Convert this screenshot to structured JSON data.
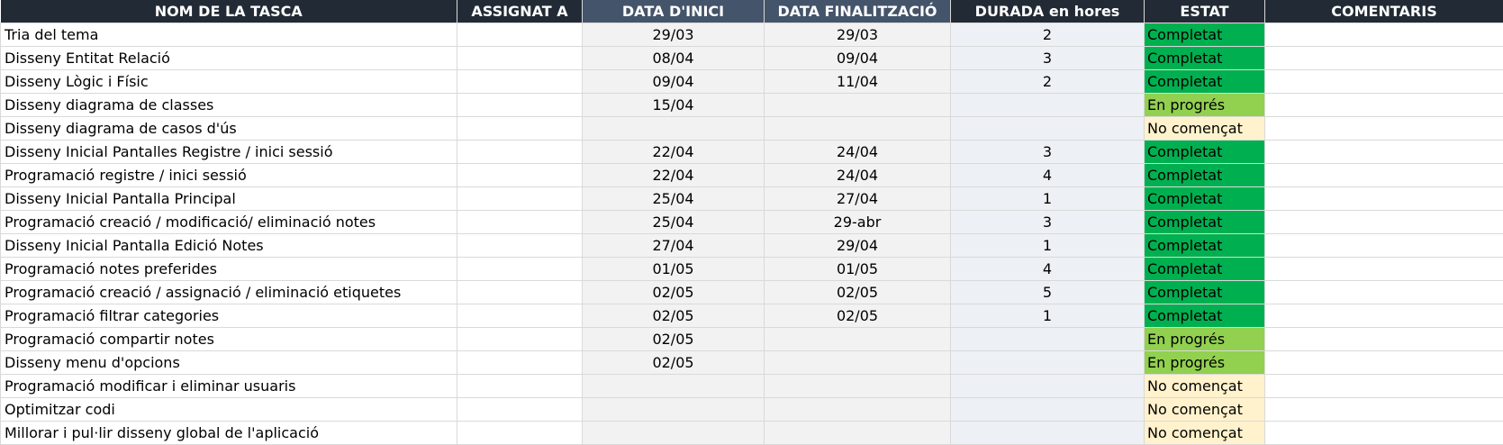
{
  "headers": {
    "task": "NOM DE LA TASCA",
    "assigned": "ASSIGNAT A",
    "start": "DATA D'INICI",
    "end": "DATA FINALITZACIÓ",
    "duration": "DURADA en hores",
    "status": "ESTAT",
    "comments": "COMENTARIS"
  },
  "colors": {
    "header_bg": "#222b35",
    "header_accent_bg": "#44546a",
    "status_completat": "#00b050",
    "status_en_progres": "#92d050",
    "status_no_comencat": "#fff2cc"
  },
  "rows": [
    {
      "task": "Tria del tema",
      "assigned": "",
      "start": "29/03",
      "end": "29/03",
      "duration": "2",
      "status": "Completat",
      "comments": ""
    },
    {
      "task": "Disseny Entitat Relació",
      "assigned": "",
      "start": "08/04",
      "end": "09/04",
      "duration": "3",
      "status": "Completat",
      "comments": ""
    },
    {
      "task": "Disseny Lògic i Físic",
      "assigned": "",
      "start": "09/04",
      "end": "11/04",
      "duration": "2",
      "status": "Completat",
      "comments": ""
    },
    {
      "task": "Disseny diagrama de classes",
      "assigned": "",
      "start": "15/04",
      "end": "",
      "duration": "",
      "status": "En progrés",
      "comments": ""
    },
    {
      "task": "Disseny diagrama de casos d'ús",
      "assigned": "",
      "start": "",
      "end": "",
      "duration": "",
      "status": "No començat",
      "comments": ""
    },
    {
      "task": "Disseny Inicial Pantalles Registre / inici sessió",
      "assigned": "",
      "start": "22/04",
      "end": "24/04",
      "duration": "3",
      "status": "Completat",
      "comments": ""
    },
    {
      "task": "Programació registre / inici sessió",
      "assigned": "",
      "start": "22/04",
      "end": "24/04",
      "duration": "4",
      "status": "Completat",
      "comments": ""
    },
    {
      "task": "Disseny Inicial Pantalla Principal",
      "assigned": "",
      "start": "25/04",
      "end": "27/04",
      "duration": "1",
      "status": "Completat",
      "comments": ""
    },
    {
      "task": "Programació creació / modificació/ eliminació notes",
      "assigned": "",
      "start": "25/04",
      "end": "29-abr",
      "duration": "3",
      "status": "Completat",
      "comments": ""
    },
    {
      "task": "Disseny Inicial Pantalla Edició Notes",
      "assigned": "",
      "start": "27/04",
      "end": "29/04",
      "duration": "1",
      "status": "Completat",
      "comments": ""
    },
    {
      "task": "Programació notes preferides",
      "assigned": "",
      "start": "01/05",
      "end": "01/05",
      "duration": "4",
      "status": "Completat",
      "comments": ""
    },
    {
      "task": "Programació creació / assignació / eliminació etiquetes",
      "assigned": "",
      "start": "02/05",
      "end": "02/05",
      "duration": "5",
      "status": "Completat",
      "comments": ""
    },
    {
      "task": "Programació filtrar categories",
      "assigned": "",
      "start": "02/05",
      "end": "02/05",
      "duration": "1",
      "status": "Completat",
      "comments": ""
    },
    {
      "task": "Programació compartir notes",
      "assigned": "",
      "start": "02/05",
      "end": "",
      "duration": "",
      "status": "En progrés",
      "comments": ""
    },
    {
      "task": "Disseny menu d'opcions",
      "assigned": "",
      "start": "02/05",
      "end": "",
      "duration": "",
      "status": "En progrés",
      "comments": ""
    },
    {
      "task": "Programació modificar i eliminar usuaris",
      "assigned": "",
      "start": "",
      "end": "",
      "duration": "",
      "status": "No començat",
      "comments": ""
    },
    {
      "task": "Optimitzar codi",
      "assigned": "",
      "start": "",
      "end": "",
      "duration": "",
      "status": "No començat",
      "comments": ""
    },
    {
      "task": "Millorar i pul·lir disseny global de l'aplicació",
      "assigned": "",
      "start": "",
      "end": "",
      "duration": "",
      "status": "No començat",
      "comments": ""
    }
  ]
}
